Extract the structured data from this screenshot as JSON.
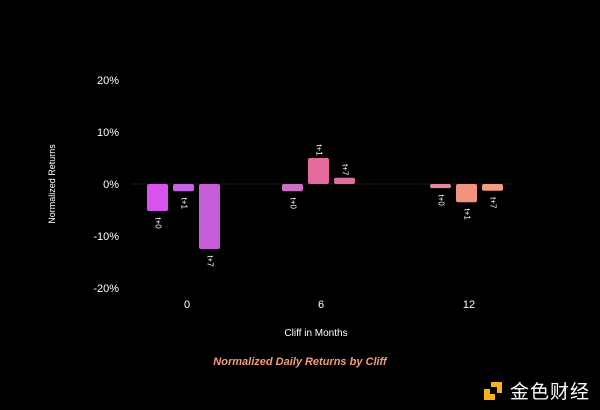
{
  "chart_data": {
    "type": "bar",
    "categories": [
      "0",
      "6",
      "12"
    ],
    "bar_labels": [
      "t+0",
      "t+1",
      "t+7"
    ],
    "values": [
      [
        -5.2,
        -1.4,
        -12.5
      ],
      [
        -1.4,
        5.0,
        1.2
      ],
      [
        -0.8,
        -3.5,
        -1.3
      ]
    ],
    "colors": [
      [
        "#d653ee",
        "#c065e4",
        "#c55ed8"
      ],
      [
        "#ca70c0",
        "#e66a9c",
        "#de6e9f"
      ],
      [
        "#e488a0",
        "#f3927e",
        "#f39c80"
      ]
    ],
    "yticks": [
      20,
      10,
      0,
      -10,
      -20
    ],
    "ytick_labels": [
      "20%",
      "10%",
      "0%",
      "-10%",
      "-20%"
    ],
    "ylim": [
      -20,
      20
    ],
    "xlabel": "Cliff in Months",
    "ylabel": "Normalized Returns",
    "grid": false,
    "colors_text": {
      "axis": "#ffffff",
      "caption": "#f59a7a"
    }
  },
  "caption": "Normalized Daily Returns by Cliff",
  "watermark": {
    "text": "金色财经",
    "logo": "golden-finance-logo-icon"
  }
}
